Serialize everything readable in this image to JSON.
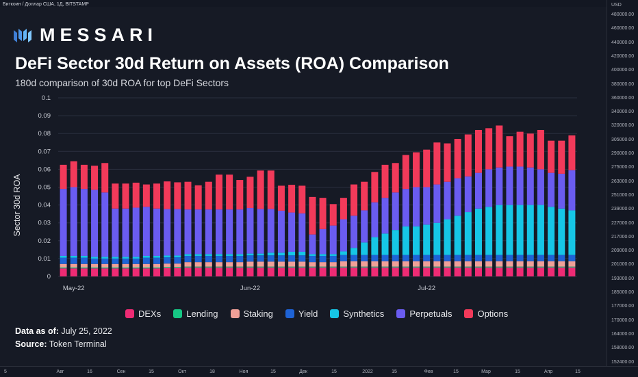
{
  "tv": {
    "header": "Биткоин / Доллар США, 1Д, BITSTAMP",
    "currency": "USD",
    "price_labels": [
      "480000.00",
      "460000.00",
      "440000.00",
      "420000.00",
      "400000.00",
      "380000.00",
      "360000.00",
      "340000.00",
      "320000.00",
      "305000.00",
      "290000.00",
      "275000.00",
      "263000.00",
      "251000.00",
      "239000.00",
      "227000.00",
      "217000.00",
      "209000.00",
      "201000.00",
      "193000.00",
      "185000.00",
      "177000.00",
      "170000.00",
      "164000.00",
      "158000.00",
      "152400.00"
    ],
    "time_labels": [
      "5",
      "Авг",
      "16",
      "Сен",
      "15",
      "Окт",
      "18",
      "Ноя",
      "15",
      "Дек",
      "15",
      "2022",
      "15",
      "Фев",
      "15",
      "Мар",
      "15",
      "Апр",
      "15"
    ]
  },
  "brand": {
    "logo_text": "MESSARI"
  },
  "title": "DeFi Sector 30d Return on Assets (ROA) Comparison",
  "subtitle": "180d comparison of 30d ROA for top DeFi Sectors",
  "footer": {
    "data_as_of_label": "Data as of:",
    "data_as_of_value": "July 25, 2022",
    "source_label": "Source:",
    "source_value": "Token Terminal"
  },
  "chart_data": {
    "type": "bar",
    "stacked": true,
    "ylabel": "Sector 30d ROA",
    "ylim": [
      0,
      0.1
    ],
    "yticks": [
      "0",
      "0.01",
      "0.02",
      "0.03",
      "0.04",
      "0.05",
      "0.06",
      "0.07",
      "0.08",
      "0.09",
      "0.1"
    ],
    "xtick_labels": [
      {
        "index": 1,
        "label": "May-22"
      },
      {
        "index": 18,
        "label": "Jun-22"
      },
      {
        "index": 35,
        "label": "Jul-22"
      }
    ],
    "grid": true,
    "legend_position": "bottom",
    "series": [
      {
        "name": "DEXs",
        "color": "#ee2b74",
        "values": [
          0.0045,
          0.0045,
          0.0045,
          0.0045,
          0.0045,
          0.0045,
          0.0045,
          0.0045,
          0.0045,
          0.0045,
          0.0047,
          0.0047,
          0.005,
          0.005,
          0.005,
          0.005,
          0.005,
          0.005,
          0.005,
          0.005,
          0.005,
          0.005,
          0.005,
          0.005,
          0.005,
          0.005,
          0.005,
          0.005,
          0.005,
          0.005,
          0.005,
          0.005,
          0.005,
          0.005,
          0.005,
          0.005,
          0.005,
          0.005,
          0.005,
          0.005,
          0.005,
          0.005,
          0.005,
          0.005,
          0.005,
          0.005,
          0.005,
          0.005,
          0.005,
          0.005
        ]
      },
      {
        "name": "Lending",
        "color": "#16c784",
        "values": [
          0.0005,
          0.0005,
          0.0005,
          0.0005,
          0.0005,
          0.0005,
          0.0005,
          0.0005,
          0.0005,
          0.0005,
          0.0005,
          0.0005,
          0.0005,
          0.0005,
          0.0005,
          0.0005,
          0.0005,
          0.0005,
          0.0005,
          0.0005,
          0.0005,
          0.0005,
          0.0005,
          0.0005,
          0.0005,
          0.0005,
          0.0005,
          0.0005,
          0.0005,
          0.0005,
          0.0005,
          0.0005,
          0.0005,
          0.0005,
          0.0005,
          0.0005,
          0.0005,
          0.0005,
          0.0005,
          0.0005,
          0.0005,
          0.0005,
          0.0005,
          0.0005,
          0.0005,
          0.0005,
          0.0005,
          0.0005,
          0.0005,
          0.0005
        ]
      },
      {
        "name": "Staking",
        "color": "#f0a098",
        "values": [
          0.002,
          0.002,
          0.002,
          0.002,
          0.002,
          0.002,
          0.002,
          0.002,
          0.002,
          0.002,
          0.002,
          0.002,
          0.0025,
          0.0025,
          0.0025,
          0.0025,
          0.0025,
          0.0025,
          0.0028,
          0.0028,
          0.0028,
          0.0028,
          0.0028,
          0.0028,
          0.0025,
          0.0025,
          0.0025,
          0.003,
          0.003,
          0.003,
          0.003,
          0.003,
          0.003,
          0.003,
          0.003,
          0.003,
          0.003,
          0.003,
          0.003,
          0.003,
          0.003,
          0.003,
          0.003,
          0.003,
          0.003,
          0.003,
          0.003,
          0.003,
          0.003,
          0.003
        ]
      },
      {
        "name": "Yield",
        "color": "#1e63d6",
        "values": [
          0.0035,
          0.0035,
          0.0035,
          0.003,
          0.003,
          0.003,
          0.003,
          0.003,
          0.0035,
          0.0035,
          0.0035,
          0.0035,
          0.0035,
          0.0035,
          0.0035,
          0.0035,
          0.0035,
          0.0035,
          0.0035,
          0.0035,
          0.0035,
          0.0035,
          0.0035,
          0.0035,
          0.0035,
          0.0035,
          0.0035,
          0.0035,
          0.0035,
          0.0035,
          0.0035,
          0.0035,
          0.0035,
          0.0035,
          0.0035,
          0.0035,
          0.0035,
          0.0035,
          0.0035,
          0.0035,
          0.0035,
          0.0035,
          0.0035,
          0.0035,
          0.0035,
          0.0035,
          0.0035,
          0.0035,
          0.0035,
          0.0035
        ]
      },
      {
        "name": "Synthetics",
        "color": "#16c6e6",
        "values": [
          0.001,
          0.001,
          0.001,
          0.001,
          0.001,
          0.001,
          0.001,
          0.001,
          0.001,
          0.001,
          0.001,
          0.001,
          0.001,
          0.001,
          0.001,
          0.001,
          0.001,
          0.001,
          0.001,
          0.001,
          0.0015,
          0.0015,
          0.002,
          0.002,
          0.001,
          0.001,
          0.001,
          0.002,
          0.004,
          0.007,
          0.01,
          0.012,
          0.014,
          0.016,
          0.016,
          0.017,
          0.018,
          0.02,
          0.022,
          0.024,
          0.026,
          0.027,
          0.028,
          0.028,
          0.028,
          0.028,
          0.028,
          0.027,
          0.026,
          0.025
        ]
      },
      {
        "name": "Perpetuals",
        "color": "#6a5cf0",
        "values": [
          0.0375,
          0.0385,
          0.0375,
          0.0375,
          0.036,
          0.027,
          0.027,
          0.0275,
          0.0275,
          0.0265,
          0.026,
          0.026,
          0.025,
          0.025,
          0.025,
          0.025,
          0.025,
          0.025,
          0.0255,
          0.025,
          0.0245,
          0.0235,
          0.022,
          0.0215,
          0.011,
          0.014,
          0.016,
          0.018,
          0.018,
          0.018,
          0.0195,
          0.02,
          0.021,
          0.021,
          0.022,
          0.021,
          0.0215,
          0.021,
          0.021,
          0.02,
          0.02,
          0.021,
          0.021,
          0.0215,
          0.0215,
          0.021,
          0.02,
          0.019,
          0.0195,
          0.0225
        ]
      },
      {
        "name": "Options",
        "color": "#f23a5a",
        "values": [
          0.0135,
          0.0145,
          0.0135,
          0.0135,
          0.0165,
          0.014,
          0.014,
          0.014,
          0.0125,
          0.014,
          0.0155,
          0.015,
          0.0155,
          0.0135,
          0.0155,
          0.0195,
          0.0195,
          0.0165,
          0.0175,
          0.0215,
          0.0215,
          0.014,
          0.0155,
          0.0155,
          0.021,
          0.0175,
          0.012,
          0.012,
          0.0175,
          0.016,
          0.017,
          0.0185,
          0.0165,
          0.019,
          0.0195,
          0.021,
          0.0235,
          0.0215,
          0.022,
          0.0235,
          0.024,
          0.023,
          0.0235,
          0.017,
          0.0195,
          0.019,
          0.022,
          0.018,
          0.0185,
          0.0195
        ]
      }
    ]
  }
}
